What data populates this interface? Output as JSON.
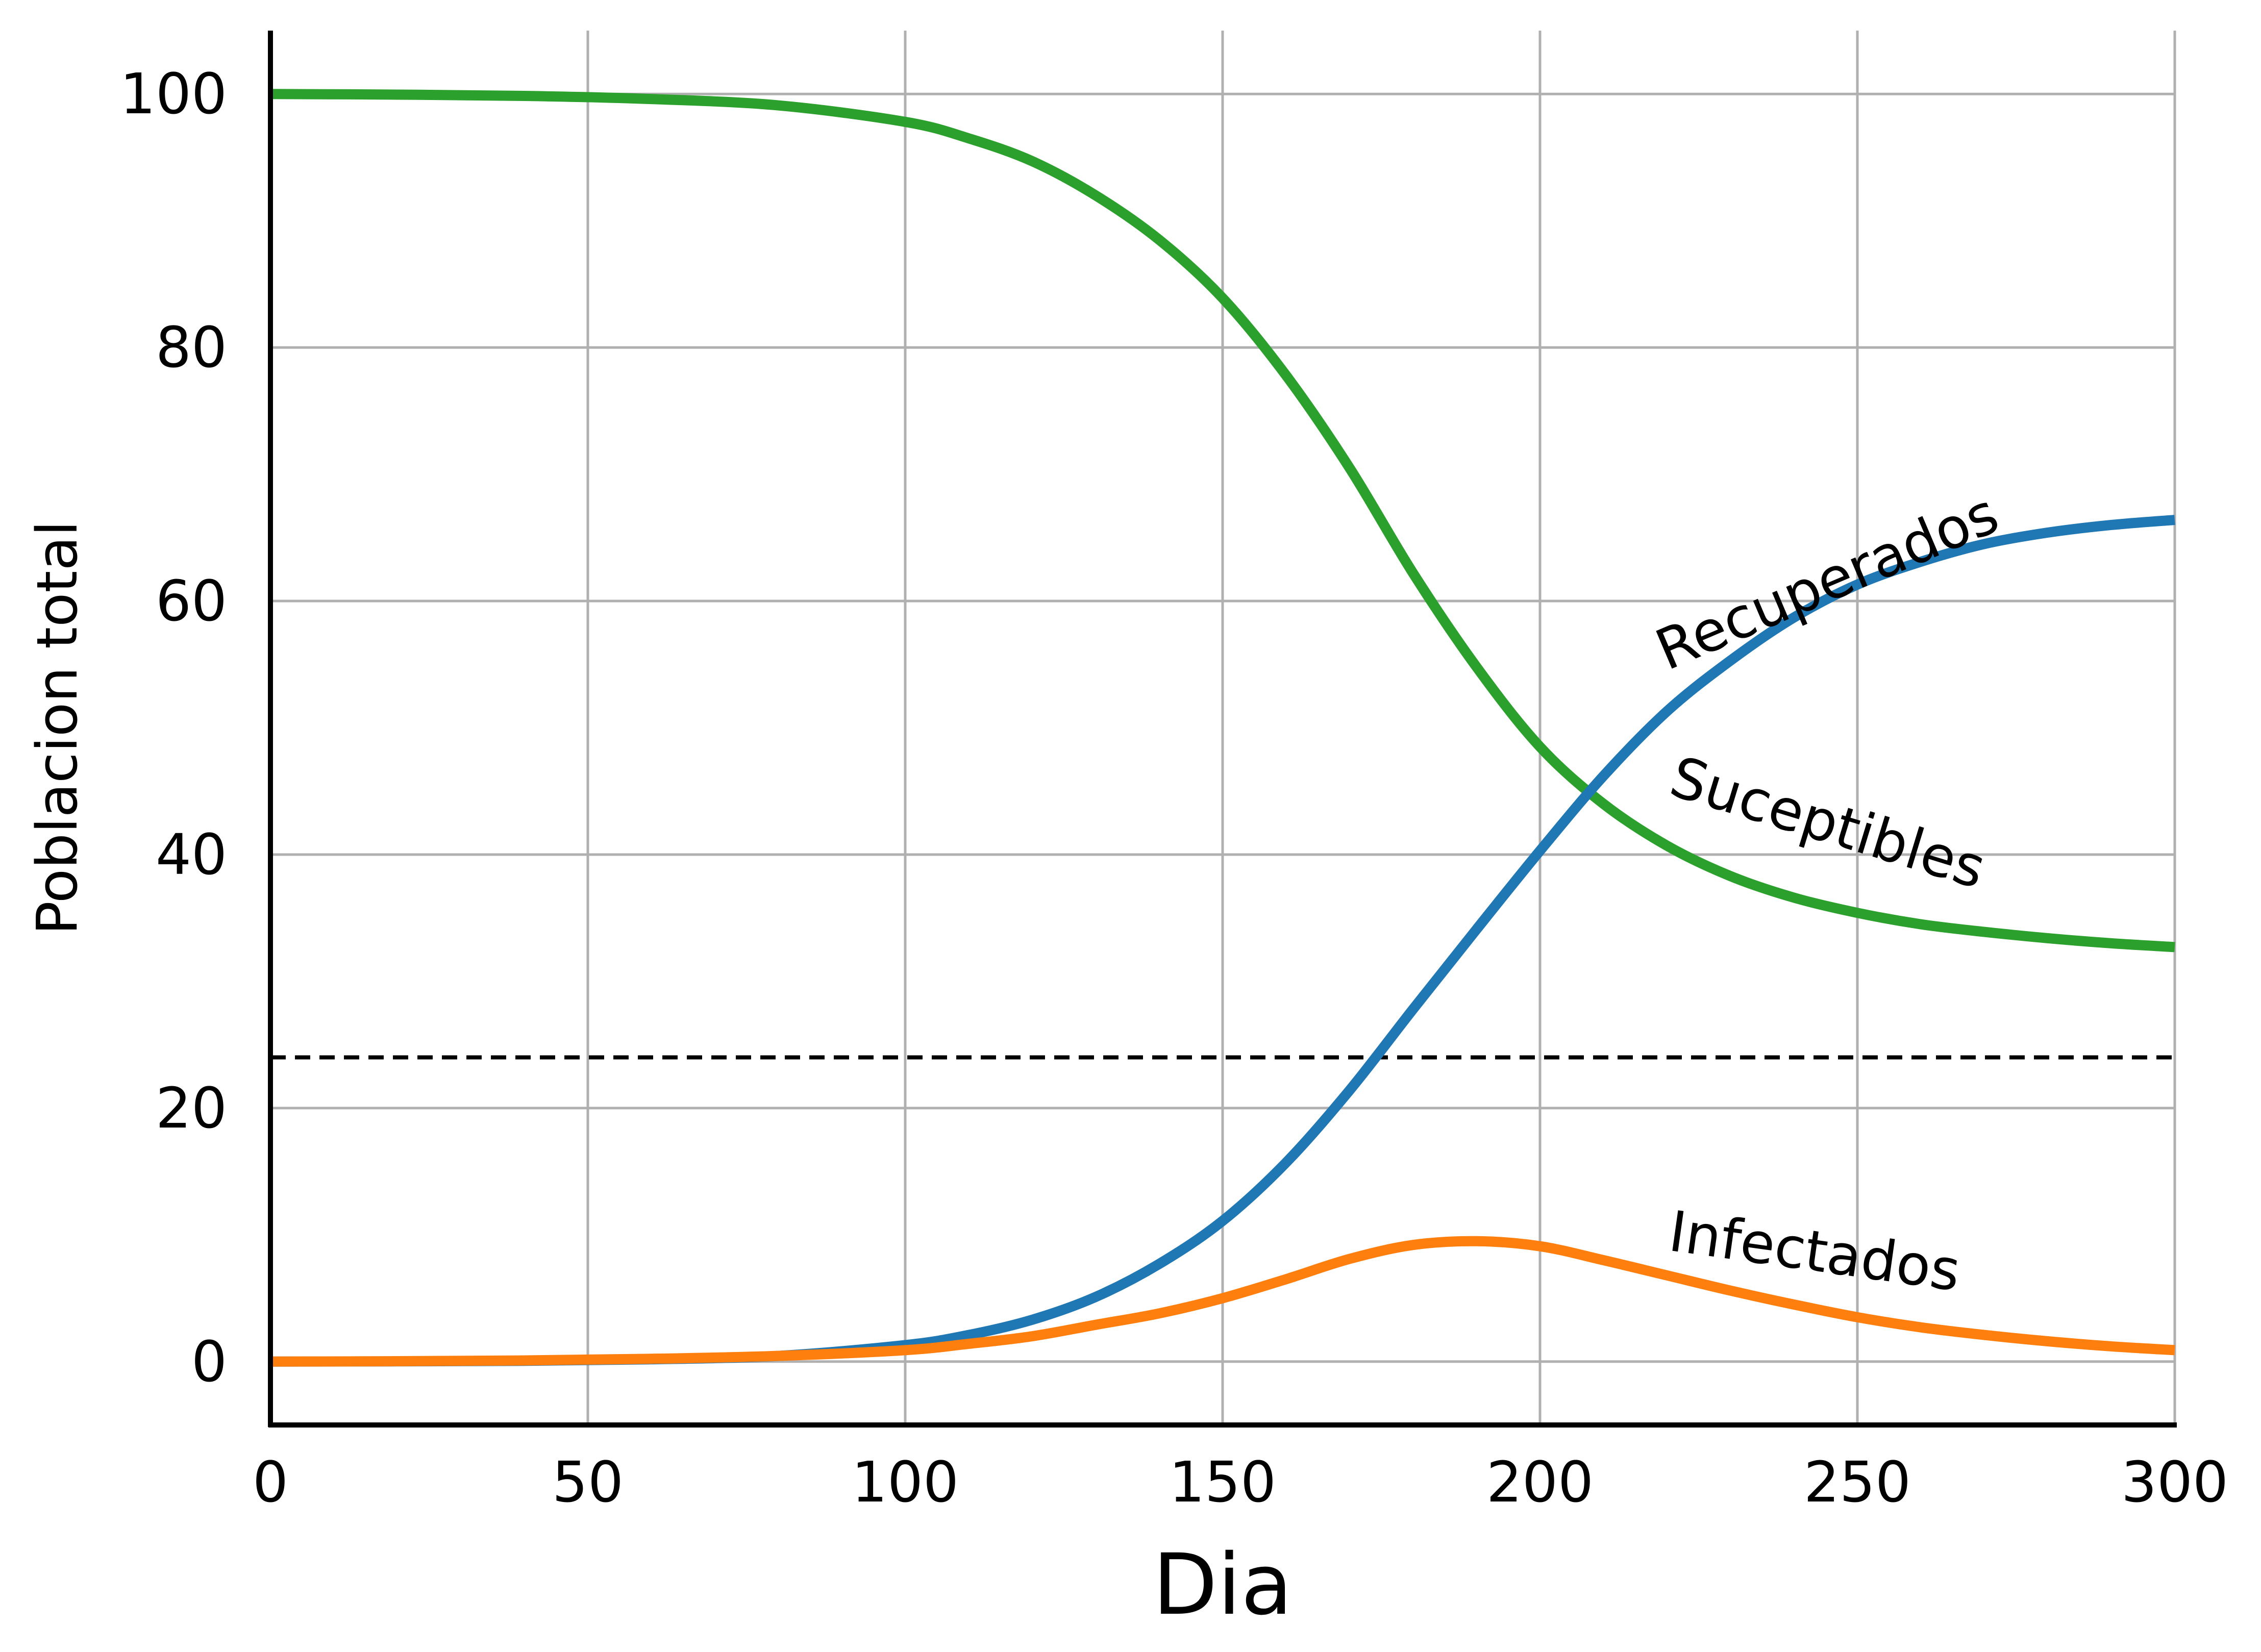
{
  "chart_data": {
    "type": "line",
    "title": "",
    "xlabel": "Dia",
    "ylabel": "Poblacion total",
    "xlim": [
      0,
      300
    ],
    "ylim": [
      -5,
      105
    ],
    "xticks": [
      0,
      50,
      100,
      150,
      200,
      250,
      300
    ],
    "yticks": [
      0,
      20,
      40,
      60,
      80,
      100
    ],
    "grid": true,
    "legend": "none",
    "reference_lines": [
      {
        "axis": "y",
        "value": 24,
        "style": "dashed",
        "color": "#000000"
      }
    ],
    "x": [
      0,
      20,
      40,
      60,
      80,
      100,
      110,
      120,
      130,
      140,
      150,
      160,
      170,
      180,
      190,
      200,
      210,
      220,
      230,
      240,
      250,
      260,
      270,
      280,
      290,
      300
    ],
    "series": [
      {
        "name": "Suceptibles",
        "color": "#2ca02c",
        "values": [
          100,
          99.95,
          99.85,
          99.6,
          99.1,
          97.8,
          96.5,
          94.7,
          92.0,
          88.5,
          83.9,
          77.8,
          70.5,
          62.2,
          54.8,
          48.5,
          44.0,
          40.7,
          38.3,
          36.6,
          35.4,
          34.5,
          33.9,
          33.4,
          33.0,
          32.7
        ]
      },
      {
        "name": "Recuperados",
        "color": "#1f77b4",
        "values": [
          0,
          0.02,
          0.06,
          0.18,
          0.45,
          1.3,
          2.1,
          3.3,
          5.1,
          7.7,
          11.1,
          15.7,
          21.4,
          27.8,
          34.1,
          40.3,
          46.2,
          51.3,
          55.3,
          58.7,
          61.3,
          63.1,
          64.5,
          65.4,
          66.0,
          66.4
        ]
      },
      {
        "name": "Infectados",
        "color": "#ff7f0e",
        "values": [
          0,
          0.03,
          0.09,
          0.22,
          0.45,
          0.9,
          1.4,
          2.0,
          2.9,
          3.8,
          5.0,
          6.5,
          8.1,
          9.2,
          9.5,
          9.1,
          8.0,
          6.8,
          5.6,
          4.5,
          3.5,
          2.7,
          2.1,
          1.6,
          1.2,
          0.9
        ]
      }
    ],
    "annotations": [
      {
        "text": "Recuperados",
        "x": 220,
        "y": 54.5,
        "angle": -23
      },
      {
        "text": "Suceptibles",
        "x": 220,
        "y": 44.8,
        "angle": 17
      },
      {
        "text": "Infectados",
        "x": 220,
        "y": 8.8,
        "angle": 8
      }
    ]
  }
}
